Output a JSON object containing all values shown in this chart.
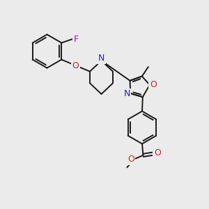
{
  "bg_color": "#ebebeb",
  "bond_color": "#1a1a1a",
  "N_color": "#2222cc",
  "O_color": "#cc2222",
  "F_color": "#bb00bb",
  "line_width": 1.4,
  "figsize": [
    3.0,
    3.0
  ],
  "dpi": 100,
  "xlim": [
    0,
    10
  ],
  "ylim": [
    0,
    10
  ]
}
